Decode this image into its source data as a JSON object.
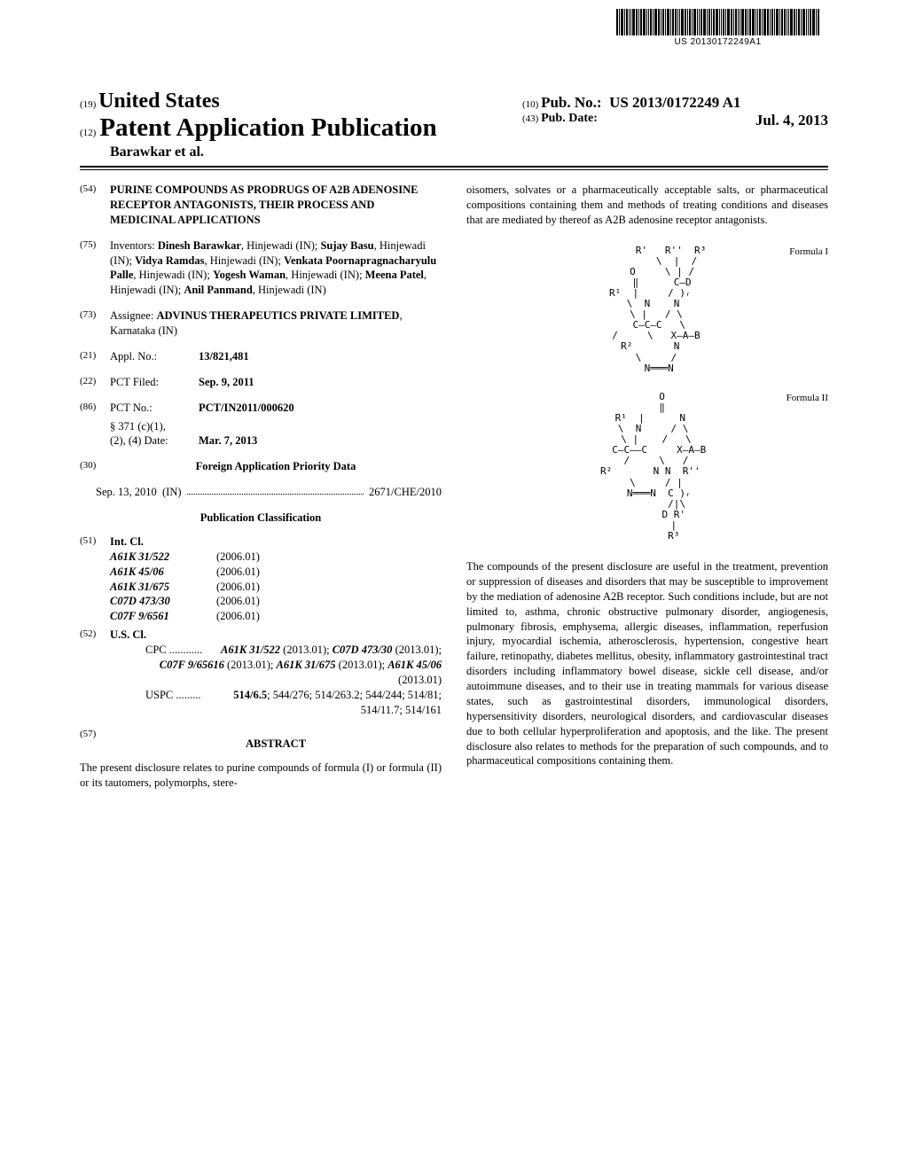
{
  "barcode_text": "US 20130172249A1",
  "header": {
    "state_num": "(19)",
    "state": "United States",
    "type_num": "(12)",
    "type": "Patent Application Publication",
    "author": "Barawkar et al.",
    "pub_no_num": "(10)",
    "pub_no_label": "Pub. No.:",
    "pub_no": "US 2013/0172249 A1",
    "pub_date_num": "(43)",
    "pub_date_label": "Pub. Date:",
    "pub_date": "Jul. 4, 2013"
  },
  "s54": {
    "num": "(54)",
    "title": "PURINE COMPOUNDS AS PRODRUGS OF A2B ADENOSINE RECEPTOR ANTAGONISTS, THEIR PROCESS AND MEDICINAL APPLICATIONS"
  },
  "s75": {
    "num": "(75)",
    "label": "Inventors:",
    "inventors": [
      {
        "name": "Dinesh Barawkar",
        "loc": "Hinjewadi (IN)"
      },
      {
        "name": "Sujay Basu",
        "loc": "Hinjewadi (IN)"
      },
      {
        "name": "Vidya Ramdas",
        "loc": "Hinjewadi (IN)"
      },
      {
        "name": "Venkata Poornapragnacharyulu Palle",
        "loc": "Hinjewadi (IN)"
      },
      {
        "name": "Yogesh Waman",
        "loc": "Hinjewadi (IN)"
      },
      {
        "name": "Meena Patel",
        "loc": "Hinjewadi (IN)"
      },
      {
        "name": "Anil Panmand",
        "loc": "Hinjewadi (IN)"
      }
    ]
  },
  "s73": {
    "num": "(73)",
    "label": "Assignee:",
    "name": "ADVINUS THERAPEUTICS PRIVATE LIMITED",
    "loc": "Karnataka (IN)"
  },
  "s21": {
    "num": "(21)",
    "label": "Appl. No.:",
    "val": "13/821,481"
  },
  "s22": {
    "num": "(22)",
    "label": "PCT Filed:",
    "val": "Sep. 9, 2011"
  },
  "s86": {
    "num": "(86)",
    "label": "PCT No.:",
    "val": "PCT/IN2011/000620",
    "sub1": "§ 371 (c)(1),",
    "sub2": "(2), (4) Date:",
    "sub2val": "Mar. 7, 2013"
  },
  "s30": {
    "num": "(30)",
    "head": "Foreign Application Priority Data",
    "date": "Sep. 13, 2010",
    "country": "(IN)",
    "appno": "2671/CHE/2010"
  },
  "pub_class_head": "Publication Classification",
  "s51": {
    "num": "(51)",
    "label": "Int. Cl.",
    "rows": [
      {
        "code": "A61K 31/522",
        "year": "(2006.01)"
      },
      {
        "code": "A61K 45/06",
        "year": "(2006.01)"
      },
      {
        "code": "A61K 31/675",
        "year": "(2006.01)"
      },
      {
        "code": "C07D 473/30",
        "year": "(2006.01)"
      },
      {
        "code": "C07F 9/6561",
        "year": "(2006.01)"
      }
    ]
  },
  "s52": {
    "num": "(52)",
    "label": "U.S. Cl.",
    "cpc_label": "CPC",
    "cpc": "A61K 31/522 (2013.01); C07D 473/30 (2013.01); C07F 9/65616 (2013.01); A61K 31/675 (2013.01); A61K 45/06 (2013.01)",
    "uspc_label": "USPC",
    "uspc": "514/6.5; 544/276; 514/263.2; 544/244; 514/81; 514/11.7; 514/161"
  },
  "s57": {
    "num": "(57)",
    "head": "ABSTRACT",
    "para1": "The present disclosure relates to purine compounds of formula (I) or formula (II) or its tautomers, polymorphs, stere-",
    "para1_cont": "oisomers, solvates or a pharmaceutically acceptable salts, or pharmaceutical compositions containing them and methods of treating conditions and diseases that are mediated by thereof as A2B adenosine receptor antagonists."
  },
  "formula1_label": "Formula I",
  "formula2_label": "Formula II",
  "bottom_para": "The compounds of the present disclosure are useful in the treatment, prevention or suppression of diseases and disorders that may be susceptible to improvement by the mediation of adenosine A2B receptor. Such conditions include, but are not limited to, asthma, chronic obstructive pulmonary disorder, angiogenesis, pulmonary fibrosis, emphysema, allergic diseases, inflammation, reperfusion injury, myocardial ischemia, atherosclerosis, hypertension, congestive heart failure, retinopathy, diabetes mellitus, obesity, inflammatory gastrointestinal tract disorders including inflammatory bowel disease, sickle cell disease, and/or autoimmune diseases, and to their use in treating mammals for various disease states, such as gastrointestinal disorders, immunological disorders, hypersensitivity disorders, neurological disorders, and cardiovascular diseases due to both cellular hyperproliferation and apoptosis, and the like. The present disclosure also relates to methods for the preparation of such compounds, and to pharmaceutical compositions containing them.",
  "chem_formula1": "        R'   R''  R³\n          \\  |  /\n     O     \\ | /\n     ‖      C―D\n R¹  |     / )ᵣ\n  \\  N    N\n   \\ |   / \\\n    C―C―C   \\\n   /     \\   X―A―B\n R²       N\n   \\     /\n    N═══N",
  "chem_formula2": "     O\n     ‖\n R¹  |      N\n  \\  N     / \\\n   \\ |    /   \\\n    C―C――C     X―A―B\n   /     \\   /\n R²       N N  R''\n   \\     / |\n    N═══N  C )ᵣ\n          /|\\\n         D R'\n         |\n         R³"
}
